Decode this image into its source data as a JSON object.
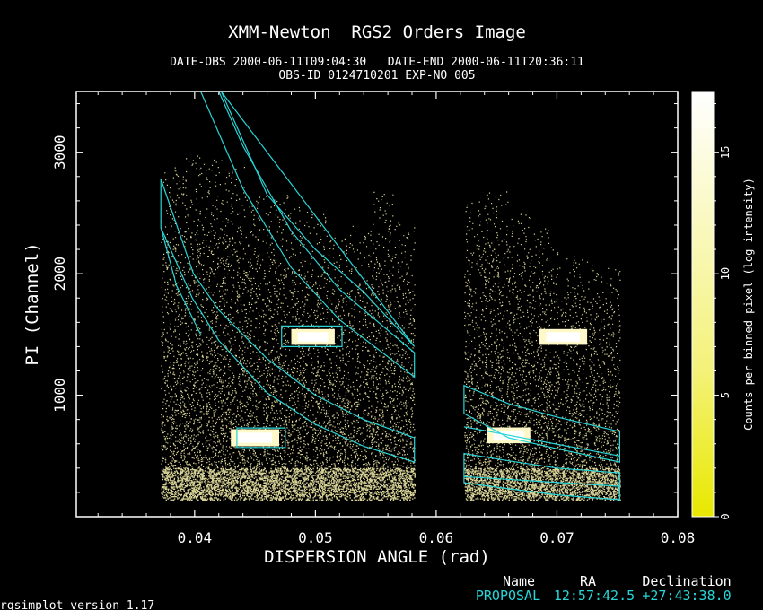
{
  "header": {
    "title": "XMM-Newton  RGS2 Orders Image",
    "obs_line1": "DATE-OBS 2000-06-11T09:04:30   DATE-END 2000-06-11T20:36:11",
    "obs_line2": "OBS-ID 0124710201 EXP-NO 005"
  },
  "footer": {
    "name_header": "Name",
    "ra_header": "RA",
    "dec_header": "Declination",
    "name_value": "PROPOSAL",
    "ra_value": "12:57:42.5",
    "dec_value": "+27:43:38.0",
    "version": "rgsimplot version 1.17"
  },
  "colors": {
    "background": "#000000",
    "axes": "#ffffff",
    "photons": "#fdf7b0",
    "region": "#27d6d8",
    "colorbar_top": "#ffffff",
    "colorbar_bottom": "#e8e800"
  },
  "chart_data": {
    "type": "heatmap",
    "title": "XMM-Newton  RGS2 Orders Image",
    "xlabel": "DISPERSION ANGLE (rad)",
    "ylabel": "PI (Channel)",
    "xlim": [
      0.0302,
      0.08
    ],
    "ylim": [
      0,
      3500
    ],
    "x_ticks": [
      0.04,
      0.05,
      0.06,
      0.07,
      0.08
    ],
    "x_tick_labels": [
      "0.04",
      "0.05",
      "0.06",
      "0.07",
      "0.08"
    ],
    "y_ticks": [
      1000,
      2000,
      3000
    ],
    "y_tick_labels": [
      "1000",
      "2000",
      "3000"
    ],
    "colorbar": {
      "label": "Counts per binned pixel (log intensity)",
      "range": [
        0,
        17.5
      ],
      "ticks": [
        0,
        5,
        10,
        15
      ],
      "tick_labels": [
        "0",
        "5",
        "10",
        "15"
      ]
    },
    "photon_blocks": [
      {
        "x0": 0.0372,
        "x1": 0.0582,
        "ymax": [
          2880,
          2980,
          2950,
          2880,
          2650,
          2650,
          2550,
          2500,
          2320,
          2400,
          2680,
          2420
        ]
      },
      {
        "x0": 0.0623,
        "x1": 0.0752,
        "ymax": [
          2600,
          2700,
          2500,
          2380,
          2180,
          2120,
          2050
        ]
      }
    ],
    "chip_gaps_x": [
      0.0408,
      0.0455,
      0.0495,
      0.0538,
      0.0657,
      0.0703
    ],
    "hot_spots": [
      {
        "x": 0.045,
        "y": 650,
        "dx": 0.002,
        "dy": 70
      },
      {
        "x": 0.0498,
        "y": 1480,
        "dx": 0.0018,
        "dy": 65
      },
      {
        "x": 0.066,
        "y": 670,
        "dx": 0.0018,
        "dy": 65
      },
      {
        "x": 0.0705,
        "y": 1480,
        "dx": 0.002,
        "dy": 65
      }
    ],
    "regions": [
      {
        "points": [
          [
            0.0372,
            2780
          ],
          [
            0.0399,
            2000
          ],
          [
            0.042,
            1700
          ],
          [
            0.046,
            1300
          ],
          [
            0.05,
            1000
          ],
          [
            0.054,
            800
          ],
          [
            0.0582,
            650
          ],
          [
            0.0582,
            450
          ],
          [
            0.054,
            580
          ],
          [
            0.05,
            760
          ],
          [
            0.046,
            1020
          ],
          [
            0.042,
            1450
          ],
          [
            0.0398,
            1800
          ],
          [
            0.0372,
            2380
          ]
        ]
      },
      {
        "points": [
          [
            0.0405,
            1500
          ],
          [
            0.0385,
            1900
          ],
          [
            0.0372,
            2380
          ]
        ]
      },
      {
        "points": [
          [
            0.0405,
            3500
          ],
          [
            0.044,
            2700
          ],
          [
            0.048,
            2050
          ],
          [
            0.052,
            1620
          ],
          [
            0.0582,
            1150
          ],
          [
            0.0582,
            1350
          ],
          [
            0.052,
            1870
          ],
          [
            0.048,
            2350
          ],
          [
            0.044,
            3050
          ],
          [
            0.042,
            3500
          ]
        ]
      },
      {
        "points": [
          [
            0.0422,
            3500
          ],
          [
            0.046,
            2650
          ],
          [
            0.05,
            2200
          ],
          [
            0.054,
            1850
          ],
          [
            0.0582,
            1400
          ]
        ]
      },
      {
        "points": [
          [
            0.0472,
            1570
          ],
          [
            0.0522,
            1570
          ],
          [
            0.0522,
            1400
          ],
          [
            0.0472,
            1400
          ]
        ]
      },
      {
        "points": [
          [
            0.0435,
            730
          ],
          [
            0.0475,
            730
          ],
          [
            0.0475,
            570
          ],
          [
            0.0435,
            570
          ]
        ]
      },
      {
        "points": [
          [
            0.0623,
            1080
          ],
          [
            0.066,
            930
          ],
          [
            0.07,
            820
          ],
          [
            0.0752,
            700
          ],
          [
            0.0752,
            450
          ],
          [
            0.07,
            560
          ],
          [
            0.066,
            650
          ],
          [
            0.0623,
            850
          ]
        ]
      },
      {
        "points": [
          [
            0.0623,
            520
          ],
          [
            0.066,
            460
          ],
          [
            0.07,
            400
          ],
          [
            0.0752,
            360
          ],
          [
            0.0752,
            140
          ],
          [
            0.07,
            180
          ],
          [
            0.066,
            230
          ],
          [
            0.0623,
            280
          ]
        ]
      },
      {
        "points": [
          [
            0.0623,
            740
          ],
          [
            0.0752,
            500
          ]
        ]
      },
      {
        "points": [
          [
            0.0623,
            330
          ],
          [
            0.0752,
            250
          ]
        ]
      }
    ]
  }
}
